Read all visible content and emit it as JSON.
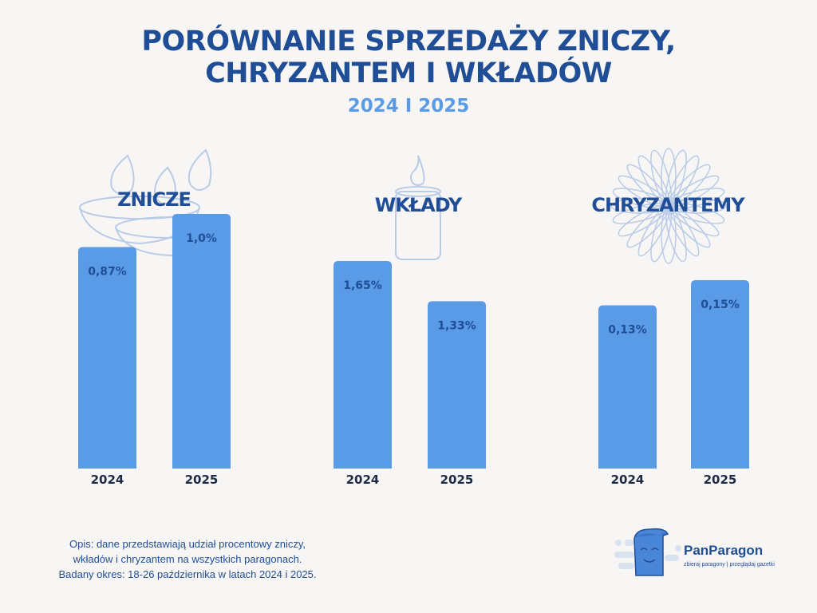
{
  "title_line1": "PORÓWNANIE SPRZEDAŻY ZNICZY,",
  "title_line2": "CHRYZANTEM I WKŁADÓW",
  "subtitle": "2024 I 2025",
  "chart_data": {
    "type": "bar",
    "title": "PORÓWNANIE SPRZEDAŻY ZNICZY, CHRYZANTEM I WKŁADÓW",
    "subtitle": "2024 I 2025",
    "groups": [
      {
        "name": "ZNICZE",
        "categories": [
          "2024",
          "2025"
        ],
        "values": [
          0.87,
          1.0
        ],
        "labels": [
          "0,87%",
          "1,0%"
        ],
        "icon": "candle-lanterns-icon"
      },
      {
        "name": "WKŁADY",
        "categories": [
          "2024",
          "2025"
        ],
        "values": [
          1.65,
          1.33
        ],
        "labels": [
          "1,65%",
          "1,33%"
        ],
        "icon": "candle-icon"
      },
      {
        "name": "CHRYZANTEMY",
        "categories": [
          "2024",
          "2025"
        ],
        "values": [
          0.13,
          0.15
        ],
        "labels": [
          "0,13%",
          "0,15%"
        ],
        "icon": "chrysanthemum-icon"
      }
    ],
    "unit": "%",
    "grid": false,
    "colors": {
      "bar": "#5a9be8",
      "label": "#1f4e96",
      "title": "#1f4e96",
      "subtitle": "#5a9be8"
    }
  },
  "description": [
    "Opis: dane przedstawiają udział procentowy zniczy,",
    "wkładów i chryzantem na wszystkich paragonach.",
    "Badany okres: 18-26 października w latach 2024 i 2025."
  ],
  "logo": {
    "name": "PanParagon",
    "tagline": "zbieraj paragony | przeglądaj gazetki"
  }
}
